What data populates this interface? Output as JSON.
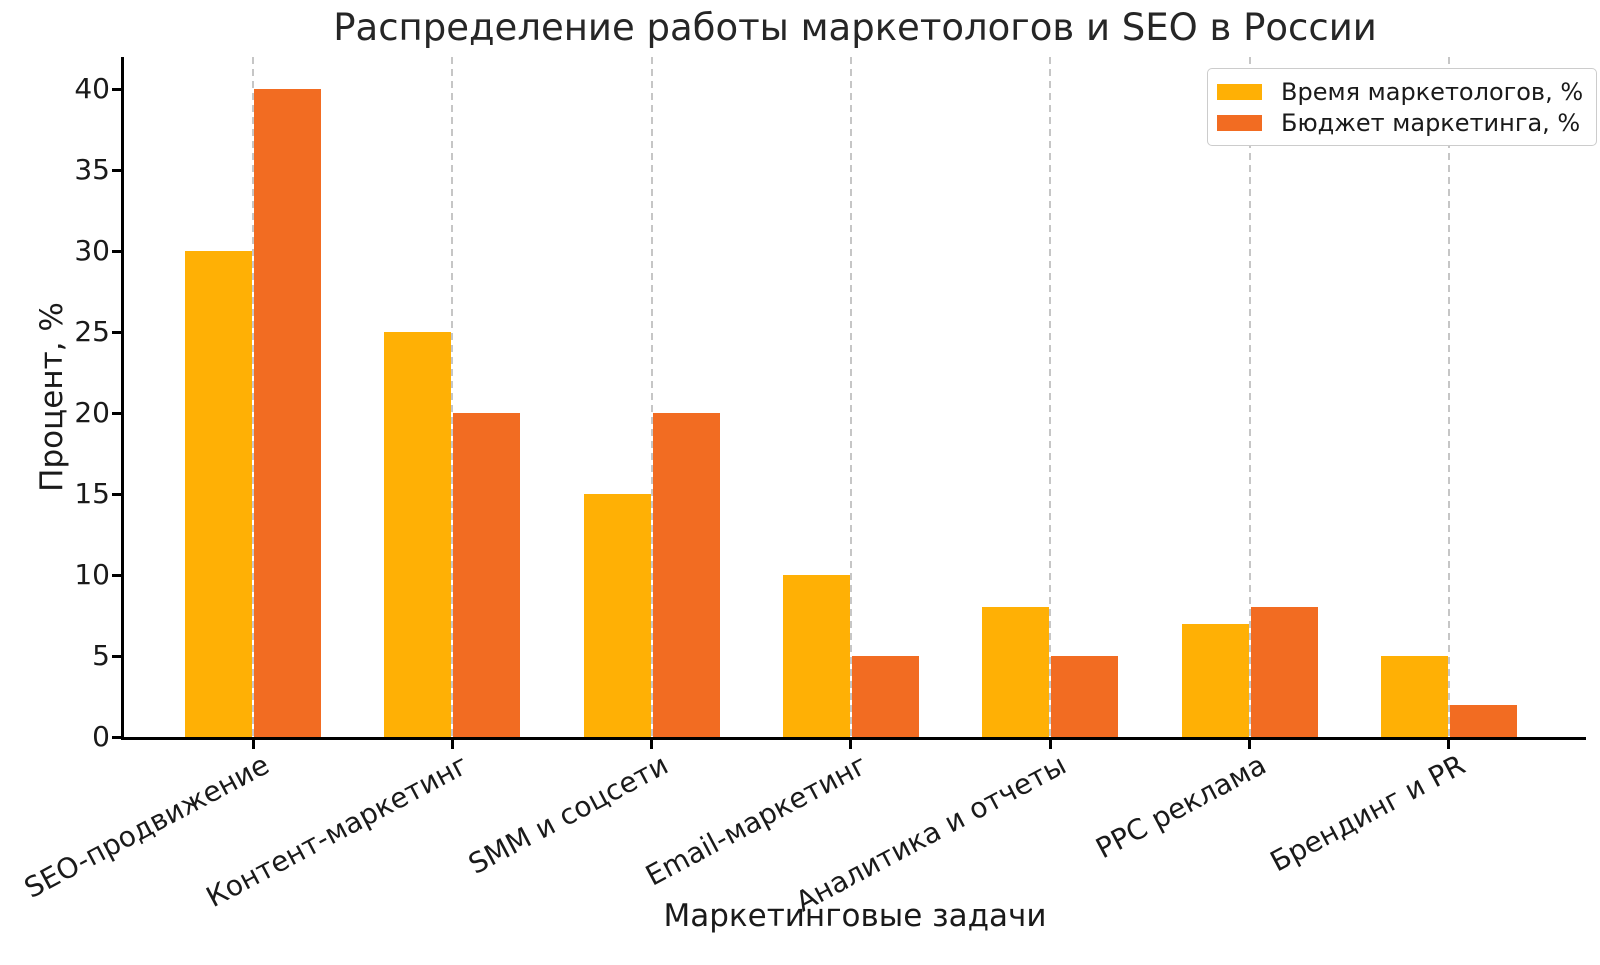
{
  "chart_data": {
    "type": "bar",
    "title": "Распределение работы маркетологов и SEO в России",
    "xlabel": "Маркетинговые задачи",
    "ylabel": "Процент, %",
    "categories": [
      "SEO-продвижение",
      "Контент-маркетинг",
      "SMM и соцсети",
      "Email-маркетинг",
      "Аналитика и отчеты",
      "PPC реклама",
      "Брендинг и PR"
    ],
    "series": [
      {
        "name": "Время маркетологов, %",
        "color": "#FFB005",
        "values": [
          30,
          25,
          15,
          10,
          8,
          7,
          5
        ]
      },
      {
        "name": "Бюджет маркетинга, %",
        "color": "#F26C22",
        "values": [
          40,
          20,
          20,
          5,
          5,
          8,
          2
        ]
      }
    ],
    "ylim": [
      0,
      42
    ],
    "yticks": [
      0,
      5,
      10,
      15,
      20,
      25,
      30,
      35,
      40
    ],
    "grid": "vertical-dashed",
    "grid_color": "#c6c6c6",
    "axis_color": "#000000",
    "text_color": "#262626",
    "legend_position": "top-right",
    "legend_border_color": "#cccccc"
  }
}
